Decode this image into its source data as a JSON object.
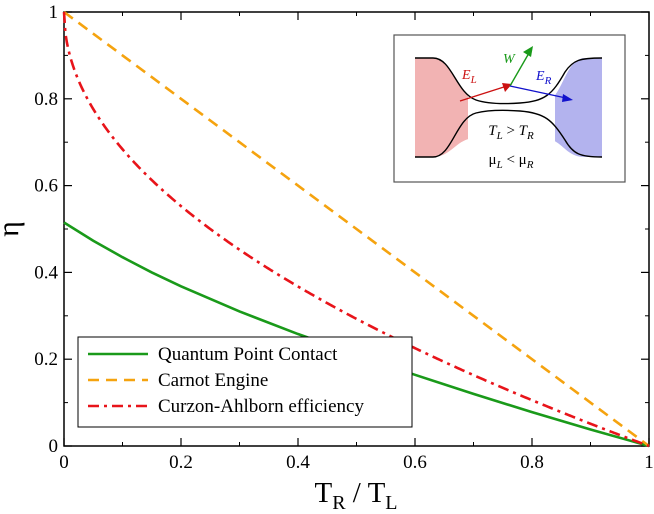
{
  "chart_data": {
    "type": "line",
    "xlabel_main": "T",
    "xlabel_sub1": "R",
    "xlabel_slash": " / T",
    "xlabel_sub2": "L",
    "ylabel": "η",
    "xlim": [
      0,
      1
    ],
    "ylim": [
      0,
      1
    ],
    "xticks": [
      "0",
      "0.2",
      "0.4",
      "0.6",
      "0.8",
      "1"
    ],
    "yticks": [
      "0",
      "0.2",
      "0.4",
      "0.6",
      "0.8",
      "1"
    ],
    "xtick_values": [
      0,
      0.2,
      0.4,
      0.6,
      0.8,
      1
    ],
    "ytick_values": [
      0,
      0.2,
      0.4,
      0.6,
      0.8,
      1
    ],
    "series": [
      {
        "name": "Quantum Point Contact",
        "color": "#1a9a1a",
        "dash": "solid",
        "x": [
          0,
          0.05,
          0.1,
          0.15,
          0.2,
          0.3,
          0.4,
          0.5,
          0.6,
          0.7,
          0.8,
          0.9,
          1.0
        ],
        "y": [
          0.515,
          0.473,
          0.435,
          0.4,
          0.368,
          0.31,
          0.258,
          0.21,
          0.164,
          0.12,
          0.078,
          0.038,
          0.0
        ]
      },
      {
        "name": "Carnot Engine",
        "color": "#f5a30f",
        "dash": "dash",
        "x": [
          0,
          1
        ],
        "y": [
          1,
          0
        ]
      },
      {
        "name": "Curzon-Ahlborn efficiency",
        "color": "#e8141a",
        "dash": "dashdot",
        "formula": "1 - sqrt(x)",
        "x": [
          0,
          0.005,
          0.01,
          0.02,
          0.04,
          0.07,
          0.1,
          0.15,
          0.2,
          0.3,
          0.4,
          0.5,
          0.6,
          0.7,
          0.8,
          0.9,
          1.0
        ],
        "y": [
          1.0,
          0.929,
          0.9,
          0.859,
          0.8,
          0.735,
          0.684,
          0.613,
          0.553,
          0.452,
          0.368,
          0.293,
          0.225,
          0.163,
          0.106,
          0.051,
          0.0
        ]
      }
    ],
    "legend_position": "bottom-left",
    "inset": {
      "labels": {
        "el": "E",
        "el_sub": "L",
        "w": "W",
        "er": "E",
        "er_sub": "R",
        "tl": "T",
        "tl_sub": "L",
        "gt": " > ",
        "tr": "T",
        "tr_sub": "R",
        "ml": "μ",
        "ml_sub": "L",
        "lt": " < ",
        "mr": "μ",
        "mr_sub": "R"
      },
      "colors": {
        "left_reservoir": "#f2b3b3",
        "right_reservoir": "#b3b3ee",
        "el_arrow": "#cc1111",
        "w_arrow": "#1a9a1a",
        "er_arrow": "#1111cc"
      }
    }
  }
}
